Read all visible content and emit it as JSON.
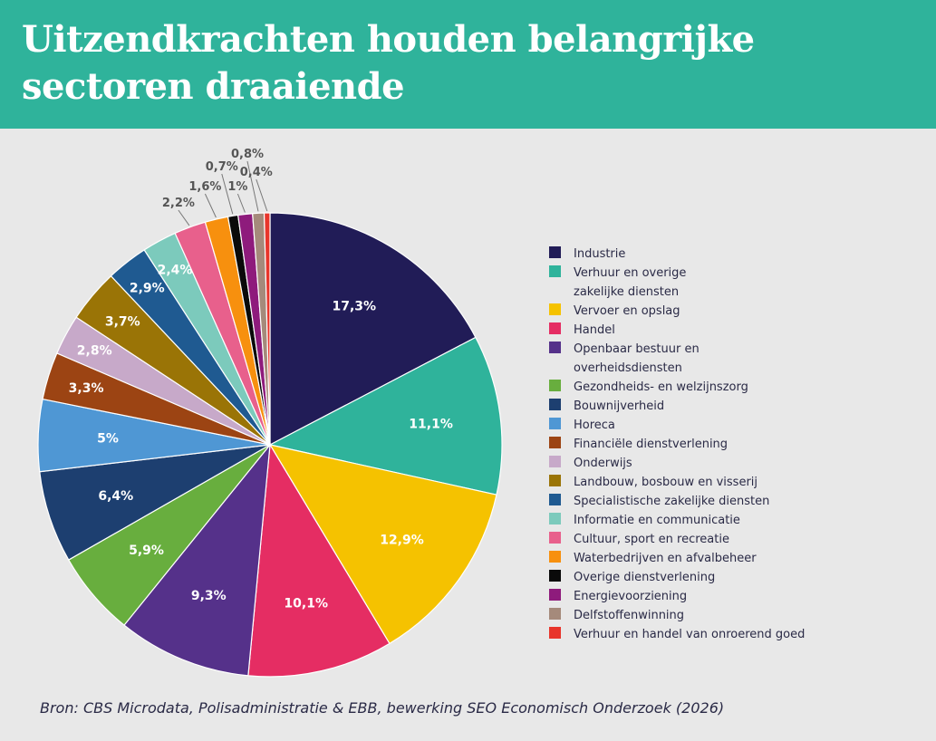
{
  "header": {
    "title_line1": "Uitzendkrachten houden belangrijke",
    "title_line2": "sectoren draaiende"
  },
  "source": "Bron: CBS Microdata, Polisadministratie & EBB, bewerking SEO Economisch Onderzoek (2026)",
  "chart_data": {
    "type": "pie",
    "title": "Uitzendkrachten houden belangrijke sectoren draaiende",
    "legend_position": "right",
    "slices": [
      {
        "label": "Industrie",
        "value": 17.3,
        "display": "17,3%",
        "color": "#211c57"
      },
      {
        "label": "Verhuur en overige zakelijke diensten",
        "label_lines": [
          "Verhuur en overige",
          "zakelijke diensten"
        ],
        "value": 11.1,
        "display": "11,1%",
        "color": "#2fb39b"
      },
      {
        "label": "Vervoer en opslag",
        "value": 12.9,
        "display": "12,9%",
        "color": "#f5c200"
      },
      {
        "label": "Handel",
        "value": 10.1,
        "display": "10,1%",
        "color": "#e52d63"
      },
      {
        "label": "Openbaar bestuur en overheidsdiensten",
        "label_lines": [
          "Openbaar bestuur en",
          "overheidsdiensten"
        ],
        "value": 9.3,
        "display": "9,3%",
        "color": "#55318a"
      },
      {
        "label": "Gezondheids- en welzijnszorg",
        "value": 5.9,
        "display": "5,9%",
        "color": "#68ae3e"
      },
      {
        "label": "Bouwnijverheid",
        "value": 6.4,
        "display": "6,4%",
        "color": "#1d3f70"
      },
      {
        "label": "Horeca",
        "value": 5.0,
        "display": "5%",
        "color": "#4f97d4"
      },
      {
        "label": "Financiële dienstverlening",
        "value": 3.3,
        "display": "3,3%",
        "color": "#9c4413"
      },
      {
        "label": "Onderwijs",
        "value": 2.8,
        "display": "2,8%",
        "color": "#c7a9c9"
      },
      {
        "label": "Landbouw, bosbouw en visserij",
        "value": 3.7,
        "display": "3,7%",
        "color": "#9a7406"
      },
      {
        "label": "Specialistische zakelijke diensten",
        "value": 2.9,
        "display": "2,9%",
        "color": "#1f5a91"
      },
      {
        "label": "Informatie en communicatie",
        "value": 2.4,
        "display": "2,4%",
        "color": "#7ccabc"
      },
      {
        "label": "Cultuur, sport en recreatie",
        "value": 2.2,
        "display": "2,2%",
        "color": "#e8608c"
      },
      {
        "label": "Waterbedrijven en afvalbeheer",
        "value": 1.6,
        "display": "1,6%",
        "color": "#f7900e"
      },
      {
        "label": "Overige dienstverlening",
        "value": 0.7,
        "display": "0,7%",
        "color": "#0a0a0a"
      },
      {
        "label": "Energievoorziening",
        "value": 1.0,
        "display": "1%",
        "color": "#8e1b7c"
      },
      {
        "label": "Delfstoffenwinning",
        "value": 0.8,
        "display": "0,8%",
        "color": "#a58a7b"
      },
      {
        "label": "Verhuur en handel van onroerend goed",
        "value": 0.4,
        "display": "0,4%",
        "color": "#e8352b"
      }
    ]
  }
}
